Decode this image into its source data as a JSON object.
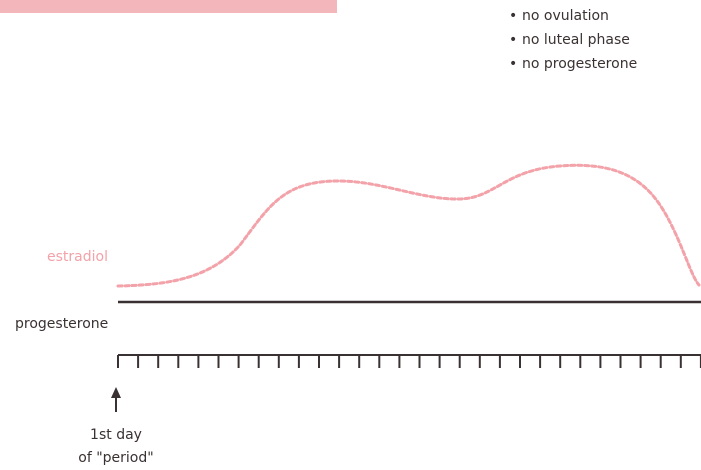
{
  "notes": [
    "no ovulation",
    "no luteal phase",
    "no progesterone"
  ],
  "bullet_char": "•",
  "series": {
    "estradiol_label": "estradiol",
    "progesterone_label": "progesterone"
  },
  "marker": {
    "line1": "1st day",
    "line2": "of \"period\""
  },
  "colors": {
    "estradiol": "#f2a2a8",
    "header_band": "#f2b6bb",
    "lines": "#3a3132"
  },
  "axis": {
    "tick_count": 30
  }
}
